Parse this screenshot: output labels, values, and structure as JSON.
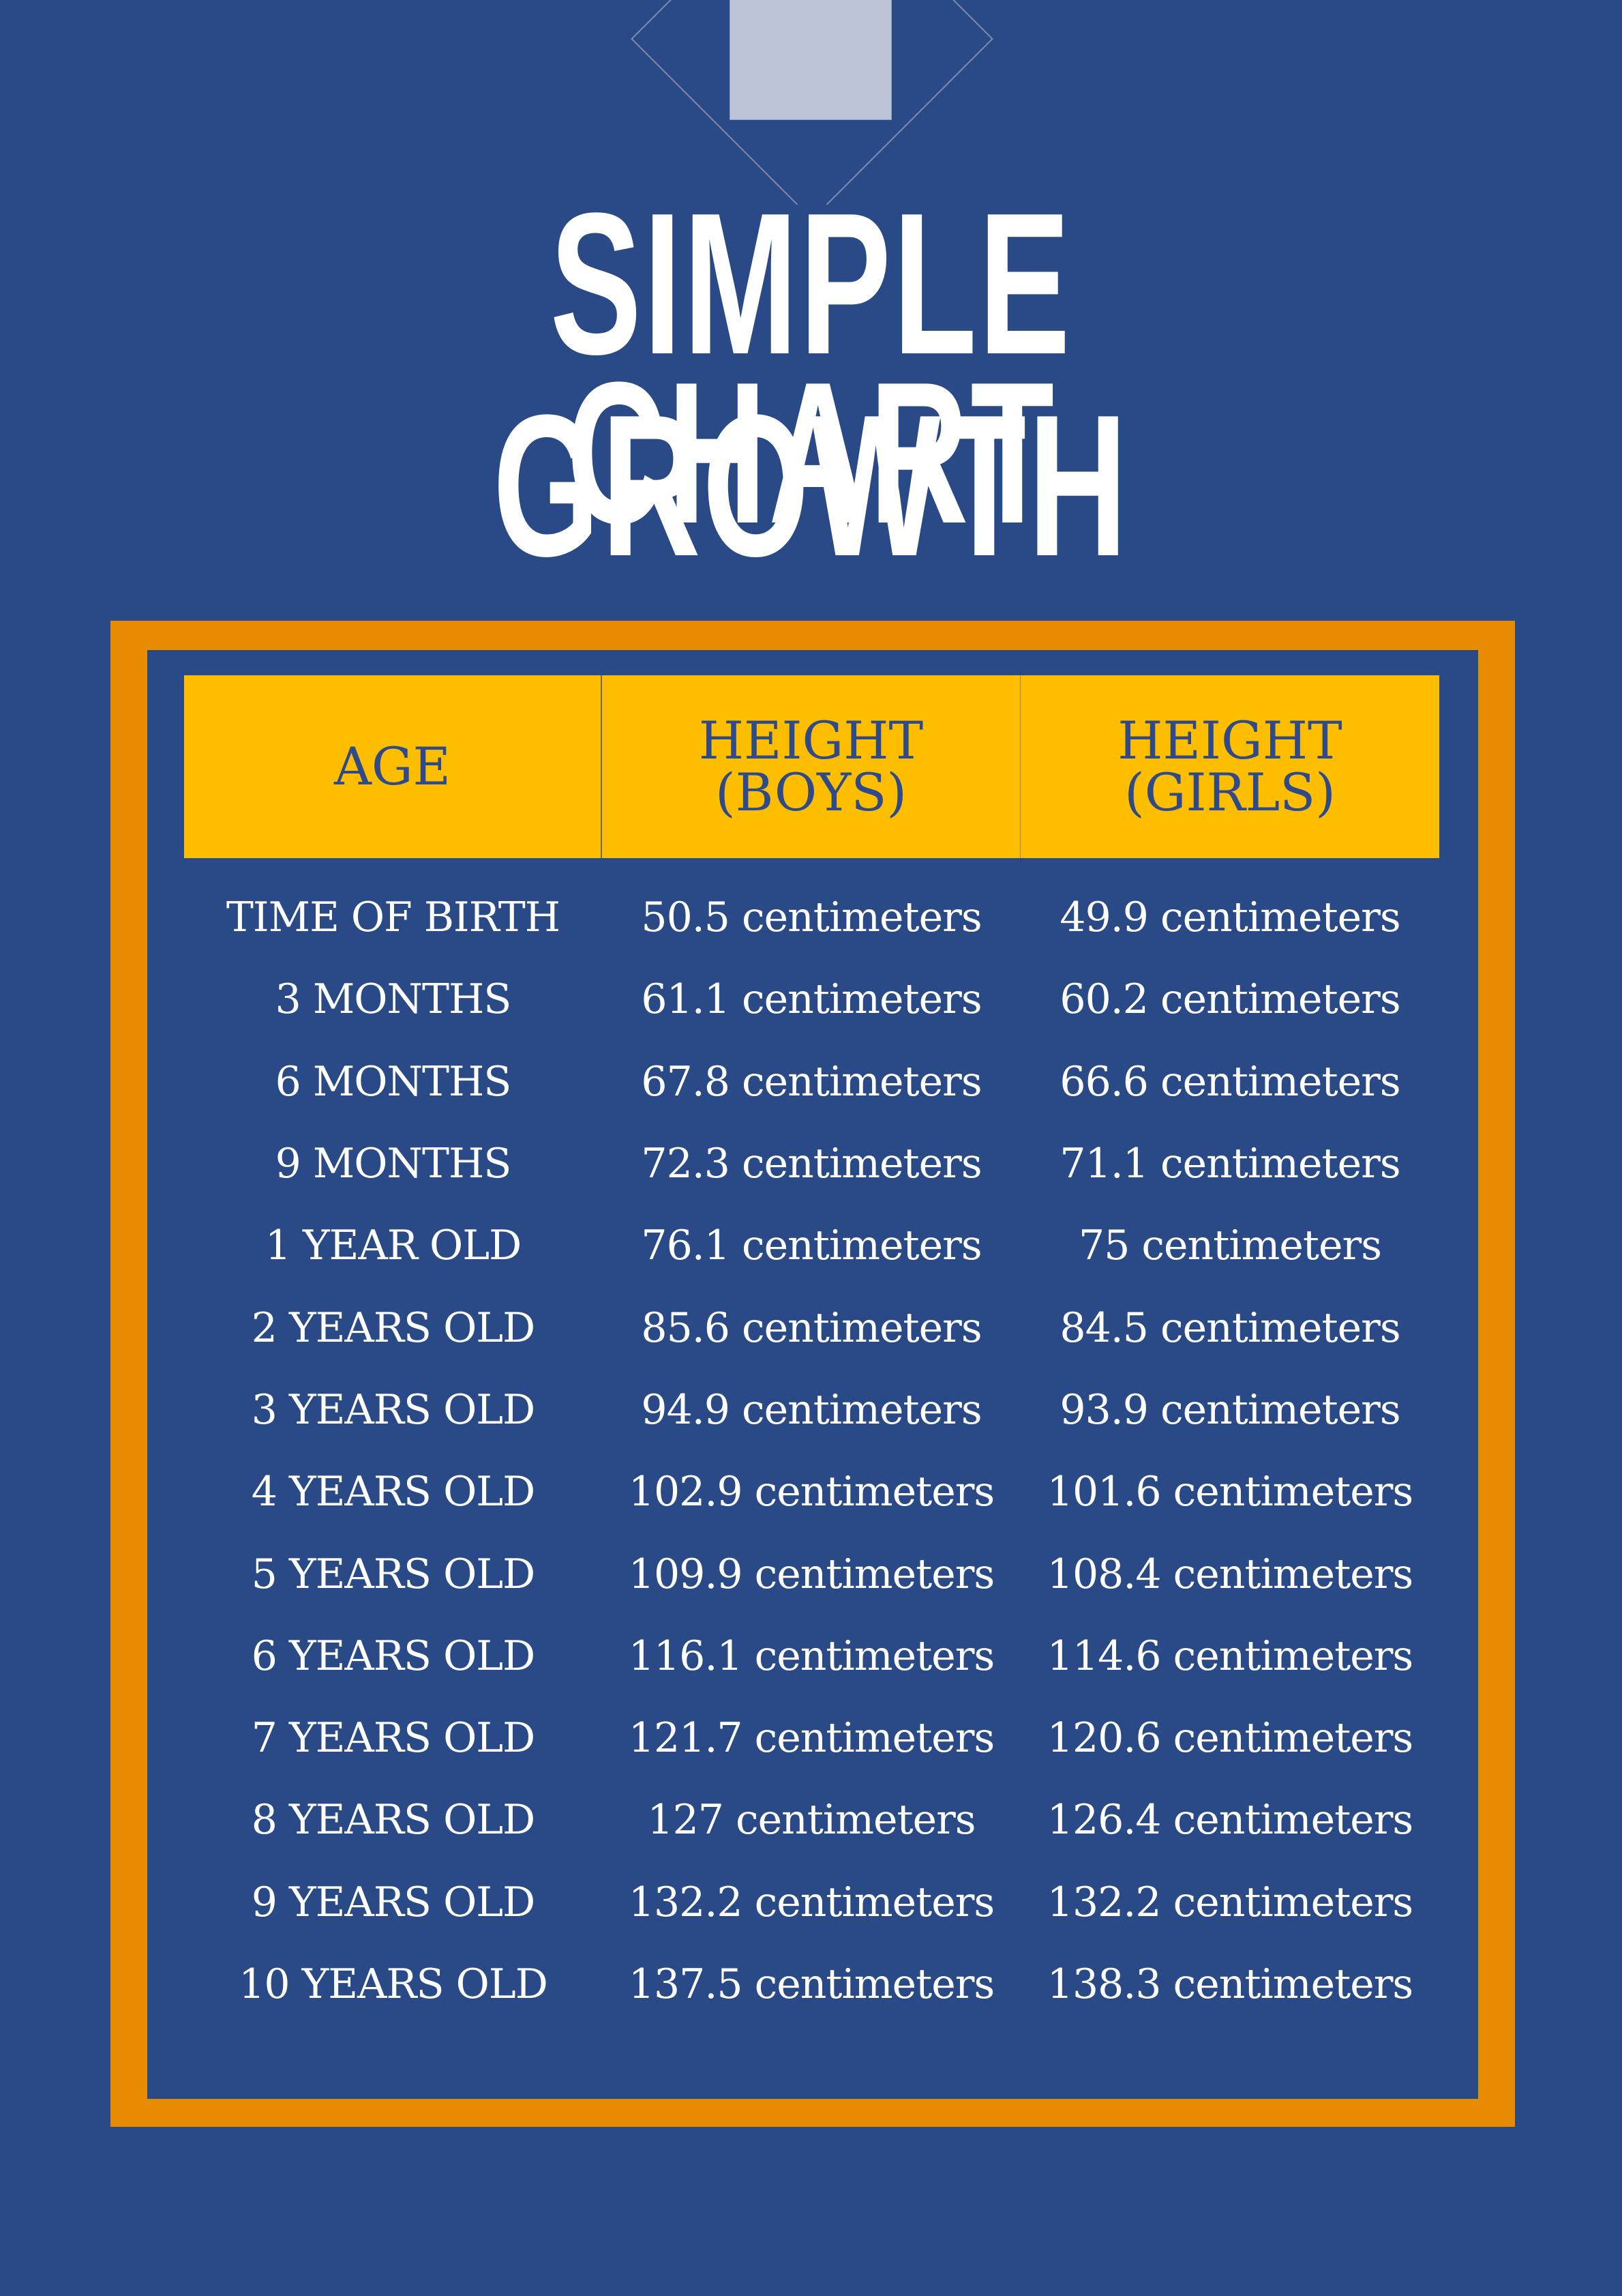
{
  "title": {
    "line1": "SIMPLE GROWTH",
    "line2": "CHART"
  },
  "colors": {
    "background": "#2A4A87",
    "frame": "#E68A00",
    "header_band": "#FDBE00",
    "header_text": "#2F4A8A",
    "body_text": "#FFFFFF",
    "decor_square": "#BDC3D6"
  },
  "table": {
    "headers": [
      {
        "line1": "AGE",
        "line2": ""
      },
      {
        "line1": "HEIGHT",
        "line2": "(BOYS)"
      },
      {
        "line1": "HEIGHT",
        "line2": "(GIRLS)"
      }
    ],
    "rows": [
      {
        "age": "TIME OF BIRTH",
        "boys": "50.5 centimeters",
        "girls": "49.9 centimeters"
      },
      {
        "age": "3 MONTHS",
        "boys": "61.1 centimeters",
        "girls": "60.2 centimeters"
      },
      {
        "age": "6 MONTHS",
        "boys": "67.8 centimeters",
        "girls": "66.6 centimeters"
      },
      {
        "age": "9 MONTHS",
        "boys": "72.3 centimeters",
        "girls": "71.1 centimeters"
      },
      {
        "age": "1 YEAR OLD",
        "boys": "76.1 centimeters",
        "girls": "75 centimeters"
      },
      {
        "age": "2 YEARS OLD",
        "boys": "85.6 centimeters",
        "girls": "84.5 centimeters"
      },
      {
        "age": "3 YEARS OLD",
        "boys": "94.9 centimeters",
        "girls": "93.9 centimeters"
      },
      {
        "age": "4 YEARS OLD",
        "boys": "102.9 centimeters",
        "girls": "101.6 centimeters"
      },
      {
        "age": "5 YEARS OLD",
        "boys": "109.9 centimeters",
        "girls": "108.4 centimeters"
      },
      {
        "age": "6 YEARS OLD",
        "boys": "116.1 centimeters",
        "girls": "114.6 centimeters"
      },
      {
        "age": "7 YEARS OLD",
        "boys": "121.7 centimeters",
        "girls": "120.6 centimeters"
      },
      {
        "age": "8 YEARS OLD",
        "boys": "127 centimeters",
        "girls": "126.4 centimeters"
      },
      {
        "age": "9 YEARS OLD",
        "boys": "132.2 centimeters",
        "girls": "132.2 centimeters"
      },
      {
        "age": "10 YEARS OLD",
        "boys": "137.5 centimeters",
        "girls": "138.3 centimeters"
      }
    ]
  },
  "chart_data": {
    "type": "table",
    "title": "SIMPLE GROWTH CHART",
    "columns": [
      "AGE",
      "HEIGHT (BOYS)",
      "HEIGHT (GIRLS)"
    ],
    "categories": [
      "TIME OF BIRTH",
      "3 MONTHS",
      "6 MONTHS",
      "9 MONTHS",
      "1 YEAR OLD",
      "2 YEARS OLD",
      "3 YEARS OLD",
      "4 YEARS OLD",
      "5 YEARS OLD",
      "6 YEARS OLD",
      "7 YEARS OLD",
      "8 YEARS OLD",
      "9 YEARS OLD",
      "10 YEARS OLD"
    ],
    "unit": "centimeters",
    "series": [
      {
        "name": "HEIGHT (BOYS)",
        "values": [
          50.5,
          61.1,
          67.8,
          72.3,
          76.1,
          85.6,
          94.9,
          102.9,
          109.9,
          116.1,
          121.7,
          127,
          132.2,
          137.5
        ]
      },
      {
        "name": "HEIGHT (GIRLS)",
        "values": [
          49.9,
          60.2,
          66.6,
          71.1,
          75,
          84.5,
          93.9,
          101.6,
          108.4,
          114.6,
          120.6,
          126.4,
          132.2,
          138.3
        ]
      }
    ]
  }
}
